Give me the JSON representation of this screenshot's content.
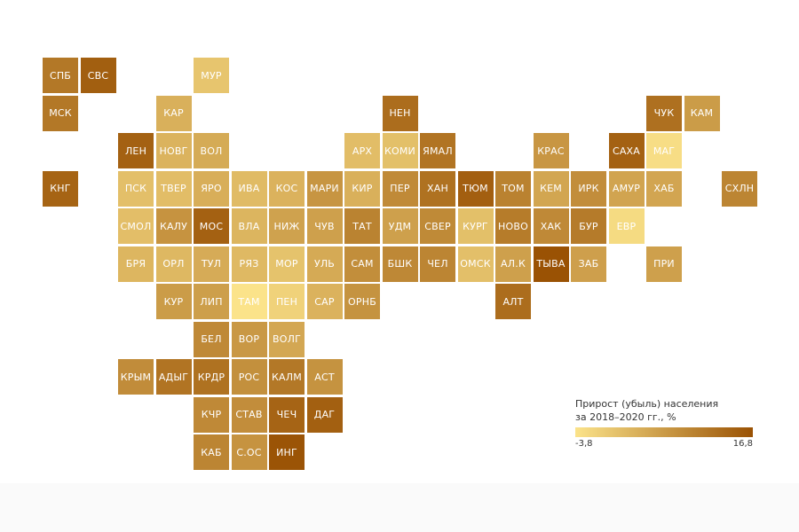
{
  "chart_data": {
    "type": "heatmap",
    "legend": {
      "title_line1": "Прирост (убыль) населения",
      "title_line2": "за 2018–2020 гг., %",
      "min_label": "-3,8",
      "max_label": "16,8",
      "min": -3.8,
      "max": 16.8,
      "color_low": "#fbe38a",
      "color_high": "#9a5204",
      "placement": "bottom-right"
    },
    "regions": [
      {
        "label": "СПБ",
        "value": 11.4,
        "col": 0,
        "row": 0
      },
      {
        "label": "СВС",
        "value": 15.0,
        "col": 1,
        "row": 0
      },
      {
        "label": "МУР",
        "value": 0.5,
        "col": 4,
        "row": 0
      },
      {
        "label": "МСК",
        "value": 11.4,
        "col": 0,
        "row": 1
      },
      {
        "label": "КАР",
        "value": 3.5,
        "col": 3,
        "row": 1
      },
      {
        "label": "НЕН",
        "value": 12.9,
        "col": 9,
        "row": 1
      },
      {
        "label": "ЧУК",
        "value": 12.5,
        "col": 16,
        "row": 1
      },
      {
        "label": "КАМ",
        "value": 6.3,
        "col": 17,
        "row": 1
      },
      {
        "label": "ЛЕН",
        "value": 14.6,
        "col": 2,
        "row": 2
      },
      {
        "label": "НОВГ",
        "value": 3.0,
        "col": 3,
        "row": 2
      },
      {
        "label": "ВОЛ",
        "value": 4.2,
        "col": 4,
        "row": 2
      },
      {
        "label": "АРХ",
        "value": 1.6,
        "col": 8,
        "row": 2
      },
      {
        "label": "КОМИ",
        "value": 1.2,
        "col": 9,
        "row": 2
      },
      {
        "label": "ЯМАЛ",
        "value": 12.0,
        "col": 10,
        "row": 2
      },
      {
        "label": "КРАС",
        "value": 7.1,
        "col": 13,
        "row": 2
      },
      {
        "label": "САХА",
        "value": 14.6,
        "col": 15,
        "row": 2
      },
      {
        "label": "МАГ",
        "value": -3.0,
        "col": 16,
        "row": 2
      },
      {
        "label": "КНГ",
        "value": 14.3,
        "col": 0,
        "row": 3
      },
      {
        "label": "ПСК",
        "value": 1.3,
        "col": 2,
        "row": 3
      },
      {
        "label": "ТВЕР",
        "value": 1.6,
        "col": 3,
        "row": 3
      },
      {
        "label": "ЯРО",
        "value": 3.7,
        "col": 4,
        "row": 3
      },
      {
        "label": "ИВА",
        "value": 1.9,
        "col": 5,
        "row": 3
      },
      {
        "label": "КОС",
        "value": 3.1,
        "col": 6,
        "row": 3
      },
      {
        "label": "МАРИ",
        "value": 7.3,
        "col": 7,
        "row": 3
      },
      {
        "label": "КИР",
        "value": 3.4,
        "col": 8,
        "row": 3
      },
      {
        "label": "ПЕР",
        "value": 8.8,
        "col": 9,
        "row": 3
      },
      {
        "label": "ХАН",
        "value": 12.3,
        "col": 10,
        "row": 3
      },
      {
        "label": "ТЮМ",
        "value": 14.9,
        "col": 11,
        "row": 3
      },
      {
        "label": "ТОМ",
        "value": 10.0,
        "col": 12,
        "row": 3
      },
      {
        "label": "КЕМ",
        "value": 4.9,
        "col": 13,
        "row": 3
      },
      {
        "label": "ИРК",
        "value": 8.4,
        "col": 14,
        "row": 3
      },
      {
        "label": "АМУР",
        "value": 5.1,
        "col": 15,
        "row": 3
      },
      {
        "label": "ХАБ",
        "value": 5.0,
        "col": 16,
        "row": 3
      },
      {
        "label": "СХЛН",
        "value": 9.6,
        "col": 18,
        "row": 3
      },
      {
        "label": "СМОЛ",
        "value": 1.4,
        "col": 2,
        "row": 4
      },
      {
        "label": "КАЛУ",
        "value": 7.5,
        "col": 3,
        "row": 4
      },
      {
        "label": "МОС",
        "value": 14.6,
        "col": 4,
        "row": 4
      },
      {
        "label": "ВЛА",
        "value": 2.8,
        "col": 5,
        "row": 4
      },
      {
        "label": "НИЖ",
        "value": 5.5,
        "col": 6,
        "row": 4
      },
      {
        "label": "ЧУВ",
        "value": 5.7,
        "col": 7,
        "row": 4
      },
      {
        "label": "ТАТ",
        "value": 9.9,
        "col": 8,
        "row": 4
      },
      {
        "label": "УДМ",
        "value": 5.7,
        "col": 9,
        "row": 4
      },
      {
        "label": "СВЕР",
        "value": 8.9,
        "col": 10,
        "row": 4
      },
      {
        "label": "КУРГ",
        "value": 1.2,
        "col": 11,
        "row": 4
      },
      {
        "label": "НОВО",
        "value": 10.9,
        "col": 12,
        "row": 4
      },
      {
        "label": "ХАК",
        "value": 9.0,
        "col": 13,
        "row": 4
      },
      {
        "label": "БУР",
        "value": 11.0,
        "col": 14,
        "row": 4
      },
      {
        "label": "ЕВР",
        "value": -2.6,
        "col": 15,
        "row": 4
      },
      {
        "label": "БРЯ",
        "value": 2.6,
        "col": 2,
        "row": 5
      },
      {
        "label": "ОРЛ",
        "value": 2.3,
        "col": 3,
        "row": 5
      },
      {
        "label": "ТУЛ",
        "value": 4.1,
        "col": 4,
        "row": 5
      },
      {
        "label": "РЯЗ",
        "value": 2.2,
        "col": 5,
        "row": 5
      },
      {
        "label": "МОР",
        "value": 0.8,
        "col": 6,
        "row": 5
      },
      {
        "label": "УЛЬ",
        "value": 4.3,
        "col": 7,
        "row": 5
      },
      {
        "label": "САМ",
        "value": 8.3,
        "col": 8,
        "row": 5
      },
      {
        "label": "БШК",
        "value": 9.1,
        "col": 9,
        "row": 5
      },
      {
        "label": "ЧЕЛ",
        "value": 9.5,
        "col": 10,
        "row": 5
      },
      {
        "label": "ОМСК",
        "value": 1.3,
        "col": 11,
        "row": 5
      },
      {
        "label": "АЛ.К",
        "value": 5.7,
        "col": 12,
        "row": 5
      },
      {
        "label": "ТЫВА",
        "value": 16.8,
        "col": 13,
        "row": 5
      },
      {
        "label": "ЗАБ",
        "value": 5.8,
        "col": 14,
        "row": 5
      },
      {
        "label": "ПРИ",
        "value": 5.7,
        "col": 16,
        "row": 5
      },
      {
        "label": "КУР",
        "value": 6.3,
        "col": 3,
        "row": 6
      },
      {
        "label": "ЛИП",
        "value": 5.9,
        "col": 4,
        "row": 6
      },
      {
        "label": "ТАМ",
        "value": -3.8,
        "col": 5,
        "row": 6
      },
      {
        "label": "ПЕН",
        "value": -1.4,
        "col": 6,
        "row": 6
      },
      {
        "label": "САР",
        "value": 3.1,
        "col": 7,
        "row": 6
      },
      {
        "label": "ОРНБ",
        "value": 7.6,
        "col": 8,
        "row": 6
      },
      {
        "label": "АЛТ",
        "value": 13.0,
        "col": 12,
        "row": 6
      },
      {
        "label": "БЕЛ",
        "value": 9.0,
        "col": 4,
        "row": 7
      },
      {
        "label": "ВОР",
        "value": 6.8,
        "col": 5,
        "row": 7
      },
      {
        "label": "ВОЛГ",
        "value": 4.7,
        "col": 6,
        "row": 7
      },
      {
        "label": "КРЫМ",
        "value": 8.5,
        "col": 2,
        "row": 8
      },
      {
        "label": "АДЫГ",
        "value": 12.0,
        "col": 3,
        "row": 8
      },
      {
        "label": "КРДР",
        "value": 12.3,
        "col": 4,
        "row": 8
      },
      {
        "label": "РОС",
        "value": 8.0,
        "col": 5,
        "row": 8
      },
      {
        "label": "КАЛМ",
        "value": 11.4,
        "col": 6,
        "row": 8
      },
      {
        "label": "АСТ",
        "value": 7.6,
        "col": 7,
        "row": 8
      },
      {
        "label": "КЧР",
        "value": 9.0,
        "col": 4,
        "row": 9
      },
      {
        "label": "СТАВ",
        "value": 8.4,
        "col": 5,
        "row": 9
      },
      {
        "label": "ЧЕЧ",
        "value": 14.2,
        "col": 6,
        "row": 9
      },
      {
        "label": "ДАГ",
        "value": 14.8,
        "col": 7,
        "row": 9
      },
      {
        "label": "КАБ",
        "value": 9.5,
        "col": 4,
        "row": 10
      },
      {
        "label": "С.ОС",
        "value": 7.5,
        "col": 5,
        "row": 10
      },
      {
        "label": "ИНГ",
        "value": 16.5,
        "col": 6,
        "row": 10
      }
    ]
  }
}
